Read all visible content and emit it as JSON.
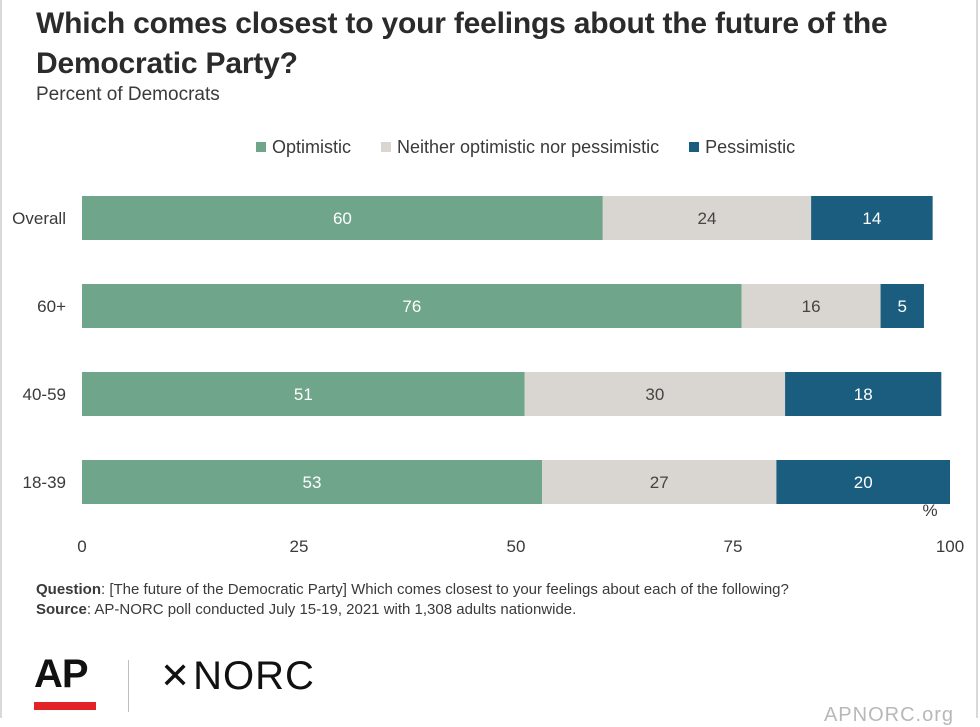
{
  "header": {
    "title": "Which comes closest to your feelings about the future of the Democratic Party?",
    "subtitle": "Percent of Democrats"
  },
  "notes": {
    "question_label": "Question",
    "question_text": ": [The future of the Democratic Party] Which comes closest to your feelings about each of the following?",
    "source_label": "Source",
    "source_text": ": AP-NORC poll conducted July 15-19, 2021 with 1,308 adults nationwide."
  },
  "logos": {
    "ap": "AP",
    "norc": "NORC",
    "site": "APNORC.org"
  },
  "chart_data": {
    "type": "bar",
    "orientation": "horizontal",
    "stacked": true,
    "title": "Which comes closest to your feelings about the future of the Democratic Party?",
    "subtitle": "Percent of Democrats",
    "categories": [
      "Overall",
      "60+",
      "40-59",
      "18-39"
    ],
    "series": [
      {
        "name": "Optimistic",
        "color": "#6fa58a",
        "values": [
          60,
          76,
          51,
          53
        ]
      },
      {
        "name": "Neither optimistic nor pessimistic",
        "color": "#d9d5d0",
        "values": [
          24,
          16,
          30,
          27
        ]
      },
      {
        "name": "Pessimistic",
        "color": "#1b5d7f",
        "values": [
          14,
          5,
          18,
          20
        ]
      }
    ],
    "xlim": [
      0,
      100
    ],
    "xticks": [
      "0",
      "25",
      "50",
      "75",
      "100"
    ],
    "unit_label": "%",
    "legend_position": "top",
    "grid": false
  }
}
